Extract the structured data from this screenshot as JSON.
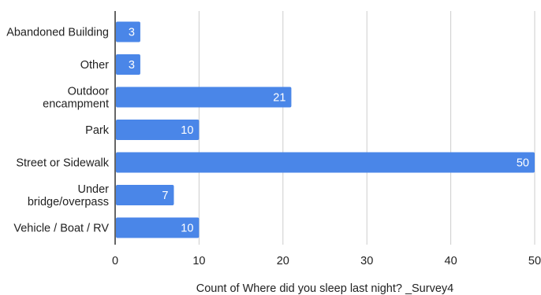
{
  "chart_data": {
    "type": "bar",
    "orientation": "horizontal",
    "categories": [
      [
        "Abandoned Building"
      ],
      [
        "Other"
      ],
      [
        "Outdoor",
        "encampment"
      ],
      [
        "Park"
      ],
      [
        "Street or Sidewalk"
      ],
      [
        "Under",
        "bridge/overpass"
      ],
      [
        "Vehicle / Boat / RV"
      ]
    ],
    "values": [
      3,
      3,
      21,
      10,
      50,
      7,
      10
    ],
    "xlabel": "Count of Where did you sleep last night? _Survey4",
    "xlim": [
      0,
      50
    ],
    "xticks": [
      0,
      10,
      20,
      30,
      40,
      50
    ],
    "grid": true,
    "colors": {
      "bar": "#4a86e8",
      "grid": "#cccccc",
      "axis": "#333333"
    }
  }
}
